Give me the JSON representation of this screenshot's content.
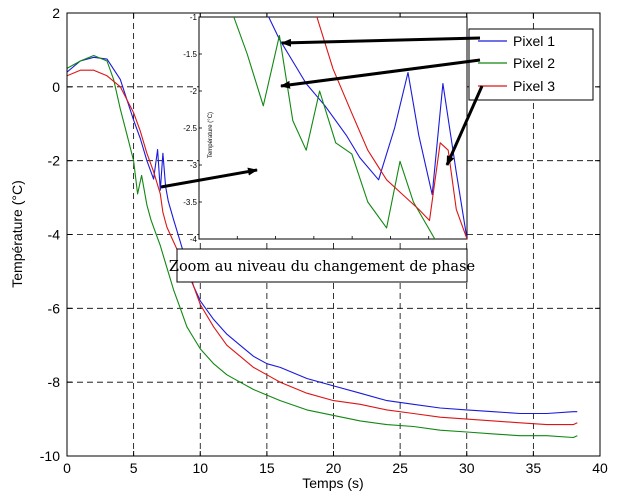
{
  "chart_data": [
    {
      "type": "line",
      "xlabel": "Temps (s)",
      "ylabel": "Température (°C)",
      "xlim": [
        0,
        40
      ],
      "ylim": [
        -10,
        2
      ],
      "xticks": [
        "0",
        "5",
        "10",
        "15",
        "20",
        "25",
        "30",
        "35",
        "40"
      ],
      "yticks": [
        "2",
        "0",
        "-2",
        "-4",
        "-6",
        "-8",
        "-10"
      ],
      "grid": "dashed",
      "legend_position": "top-right",
      "series": [
        {
          "name": "Pixel 1",
          "color": "#1a1adc",
          "x": [
            0,
            1,
            2,
            3,
            4,
            5,
            5.5,
            6,
            6.5,
            6.8,
            7,
            7.2,
            7.4,
            7.6,
            8,
            8.5,
            9,
            9.5,
            10,
            11,
            12,
            13,
            14,
            15,
            16,
            18,
            20,
            22,
            24,
            26,
            28,
            30,
            32,
            34,
            36,
            38,
            38.3
          ],
          "y": [
            0.4,
            0.7,
            0.8,
            0.75,
            0.2,
            -0.9,
            -1.4,
            -2.0,
            -2.5,
            -1.7,
            -2.8,
            -1.8,
            -2.7,
            -3.1,
            -3.6,
            -4.2,
            -4.8,
            -5.4,
            -5.8,
            -6.3,
            -6.7,
            -7.0,
            -7.3,
            -7.5,
            -7.6,
            -7.9,
            -8.1,
            -8.3,
            -8.5,
            -8.6,
            -8.7,
            -8.75,
            -8.8,
            -8.85,
            -8.85,
            -8.8,
            -8.8
          ]
        },
        {
          "name": "Pixel 2",
          "color": "#118811",
          "x": [
            0,
            1,
            2,
            3,
            3.5,
            4,
            4.5,
            5,
            5.3,
            5.6,
            6,
            6.3,
            6.6,
            7,
            7.5,
            8,
            8.5,
            9,
            9.5,
            10,
            11,
            12,
            13,
            14,
            15,
            16,
            18,
            20,
            22,
            24,
            26,
            28,
            30,
            32,
            34,
            36,
            38,
            38.3
          ],
          "y": [
            0.5,
            0.7,
            0.85,
            0.7,
            0.2,
            -0.6,
            -1.3,
            -2.0,
            -2.9,
            -2.4,
            -3.2,
            -3.6,
            -3.9,
            -4.3,
            -4.9,
            -5.5,
            -6.0,
            -6.5,
            -6.8,
            -7.1,
            -7.5,
            -7.8,
            -8.0,
            -8.2,
            -8.35,
            -8.5,
            -8.75,
            -8.9,
            -9.05,
            -9.15,
            -9.2,
            -9.3,
            -9.35,
            -9.4,
            -9.45,
            -9.45,
            -9.5,
            -9.45
          ]
        },
        {
          "name": "Pixel 3",
          "color": "#dd1515",
          "x": [
            0,
            1,
            2,
            3,
            4,
            5,
            5.5,
            6,
            6.5,
            7,
            7.2,
            7.5,
            8,
            8.5,
            9,
            9.5,
            10,
            11,
            12,
            13,
            14,
            15,
            16,
            18,
            20,
            22,
            24,
            26,
            28,
            30,
            32,
            34,
            36,
            38,
            38.3
          ],
          "y": [
            0.3,
            0.45,
            0.45,
            0.3,
            0.0,
            -0.7,
            -1.2,
            -1.8,
            -2.3,
            -2.9,
            -3.4,
            -3.8,
            -4.2,
            -4.6,
            -5.0,
            -5.4,
            -5.9,
            -6.5,
            -7.0,
            -7.3,
            -7.6,
            -7.8,
            -8.0,
            -8.3,
            -8.5,
            -8.6,
            -8.75,
            -8.85,
            -8.95,
            -9.0,
            -9.05,
            -9.1,
            -9.15,
            -9.15,
            -9.1
          ]
        }
      ]
    },
    {
      "type": "line",
      "inset": true,
      "ylabel": "Température (°C)",
      "ylim": [
        -4,
        -1
      ],
      "yticks": [
        "-1",
        "-1.5",
        "-2",
        "-2.5",
        "-3",
        "-3.5",
        "-4"
      ],
      "caption": "Zoom au niveau du changement de phase",
      "series": [
        {
          "name": "Pixel 1",
          "color": "#1a1adc",
          "x": [
            0.26,
            0.3,
            0.35,
            0.4,
            0.47,
            0.55,
            0.6,
            0.67,
            0.73,
            0.78,
            0.82,
            0.87,
            0.91,
            0.96,
            1.0
          ],
          "y": [
            -1.0,
            -1.3,
            -1.6,
            -1.9,
            -2.2,
            -2.6,
            -2.9,
            -3.2,
            -2.5,
            -1.75,
            -2.6,
            -3.4,
            -1.9,
            -3.1,
            -4.0
          ]
        },
        {
          "name": "Pixel 2",
          "color": "#118811",
          "x": [
            0.13,
            0.18,
            0.24,
            0.3,
            0.35,
            0.4,
            0.45,
            0.51,
            0.57,
            0.63,
            0.7,
            0.75,
            0.8,
            0.88
          ],
          "y": [
            -1.0,
            -1.5,
            -2.2,
            -1.25,
            -2.4,
            -2.8,
            -2.0,
            -2.7,
            -2.85,
            -3.5,
            -3.85,
            -2.95,
            -3.5,
            -4.0
          ]
        },
        {
          "name": "Pixel 3",
          "color": "#dd1515",
          "x": [
            0.44,
            0.5,
            0.57,
            0.63,
            0.7,
            0.76,
            0.82,
            0.86,
            0.9,
            0.93,
            0.96,
            1.0
          ],
          "y": [
            -1.0,
            -1.7,
            -2.3,
            -2.8,
            -3.2,
            -3.4,
            -3.6,
            -3.75,
            -2.7,
            -2.8,
            -3.6,
            -4.0
          ]
        }
      ]
    }
  ]
}
